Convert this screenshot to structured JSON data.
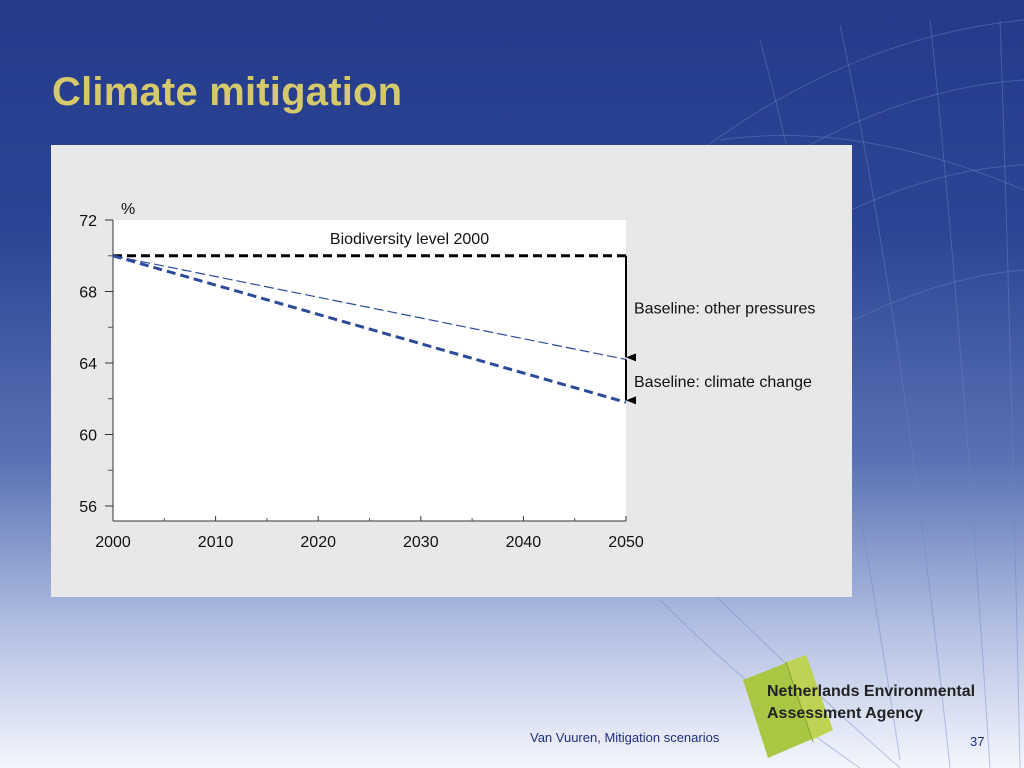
{
  "slide": {
    "title": "Climate mitigation",
    "footer": "Van Vuuren, Mitigation scenarios",
    "page_number": "37"
  },
  "logo": {
    "line1": "Netherlands Environmental",
    "line2": "Assessment Agency"
  },
  "colors": {
    "title": "#d6c96c",
    "series_blue": "#2c4a9a",
    "reference": "#000000"
  },
  "chart_data": {
    "type": "line",
    "ylabel": "%",
    "xlim": [
      2000,
      2050
    ],
    "ylim": [
      56,
      72
    ],
    "x_ticks": [
      2000,
      2010,
      2020,
      2030,
      2040,
      2050
    ],
    "y_ticks": [
      56,
      60,
      64,
      68,
      72
    ],
    "grid": false,
    "series": [
      {
        "name": "Biodiversity level 2000",
        "x": [
          2000,
          2050
        ],
        "y": [
          70,
          70
        ],
        "style": "dashed",
        "weight": "thick",
        "color": "#000000"
      },
      {
        "x": [
          2000,
          2050
        ],
        "y": [
          70,
          64.2
        ],
        "style": "dashed",
        "weight": "thin",
        "color": "#2c4a9a"
      },
      {
        "x": [
          2000,
          2050
        ],
        "y": [
          70,
          61.8
        ],
        "style": "dashed",
        "weight": "thick",
        "color": "#2c4a9a"
      }
    ],
    "annotations": [
      {
        "text": "Baseline: other pressures",
        "arrow_from": 70,
        "arrow_to": 64.2,
        "x": 2050
      },
      {
        "text": "Baseline: climate change",
        "arrow_from": 64.2,
        "arrow_to": 61.8,
        "x": 2050
      }
    ]
  }
}
